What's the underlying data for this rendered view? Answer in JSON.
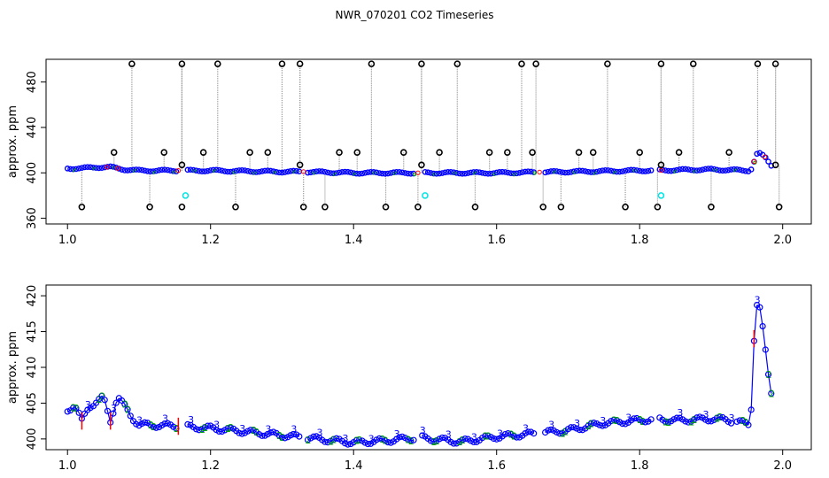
{
  "title": "NWR_070201  CO2 Timeseries",
  "chart_data": [
    {
      "type": "scatter",
      "ylabel": "approx. ppm",
      "xlim": [
        0.97,
        2.04
      ],
      "ylim": [
        355,
        500
      ],
      "x_ticks": [
        1.0,
        1.2,
        1.4,
        1.6,
        1.8,
        2.0
      ],
      "x_tick_labels": [
        "1.0",
        "1.2",
        "1.4",
        "1.6",
        "1.8",
        "2.0"
      ],
      "y_ticks": [
        360,
        400,
        440,
        480
      ],
      "y_tick_labels": [
        "360",
        "400",
        "440",
        "480"
      ],
      "base_series": [
        {
          "x": 1.0,
          "y": 404
        },
        {
          "x": 1.02,
          "y": 404
        },
        {
          "x": 1.04,
          "y": 405
        },
        {
          "x": 1.06,
          "y": 405
        },
        {
          "x": 1.08,
          "y": 403
        },
        {
          "x": 1.1,
          "y": 402
        },
        {
          "x": 1.2,
          "y": 402
        },
        {
          "x": 1.3,
          "y": 401
        },
        {
          "x": 1.33,
          "y": 401
        },
        {
          "x": 1.4,
          "y": 400
        },
        {
          "x": 1.5,
          "y": 400
        },
        {
          "x": 1.6,
          "y": 400
        },
        {
          "x": 1.7,
          "y": 401
        },
        {
          "x": 1.8,
          "y": 402
        },
        {
          "x": 1.9,
          "y": 403
        },
        {
          "x": 1.955,
          "y": 402
        },
        {
          "x": 1.965,
          "y": 418
        },
        {
          "x": 1.975,
          "y": 414
        },
        {
          "x": 1.985,
          "y": 406
        }
      ],
      "outliers_high": [
        1.09,
        1.16,
        1.21,
        1.3,
        1.325,
        1.425,
        1.495,
        1.545,
        1.635,
        1.655,
        1.755,
        1.83,
        1.875,
        1.965,
        1.99
      ],
      "outliers_low": [
        1.02,
        1.115,
        1.16,
        1.235,
        1.33,
        1.36,
        1.445,
        1.49,
        1.57,
        1.665,
        1.69,
        1.78,
        1.825,
        1.9,
        1.995
      ],
      "outliers_mid": [
        1.065,
        1.135,
        1.16,
        1.19,
        1.255,
        1.28,
        1.325,
        1.38,
        1.405,
        1.47,
        1.495,
        1.52,
        1.59,
        1.615,
        1.65,
        1.715,
        1.735,
        1.8,
        1.83,
        1.855,
        1.925,
        1.99
      ],
      "cyan_points": [
        {
          "x": 1.165,
          "y": 380
        },
        {
          "x": 1.5,
          "y": 380
        },
        {
          "x": 1.83,
          "y": 380
        }
      ],
      "colors": {
        "main": "#0000ff",
        "outlier": "#000000",
        "alt": "#00aa00",
        "flag": "#ff0000",
        "cyan": "#00e5e5",
        "line": "#999999"
      }
    },
    {
      "type": "scatter",
      "ylabel": "approx. ppm",
      "xlim": [
        0.97,
        2.04
      ],
      "ylim": [
        398.5,
        421.5
      ],
      "x_ticks": [
        1.0,
        1.2,
        1.4,
        1.6,
        1.8,
        2.0
      ],
      "x_tick_labels": [
        "1.0",
        "1.2",
        "1.4",
        "1.6",
        "1.8",
        "2.0"
      ],
      "y_ticks": [
        400,
        405,
        410,
        415,
        420
      ],
      "y_tick_labels": [
        "400",
        "405",
        "410",
        "415",
        "420"
      ],
      "series": [
        {
          "x": 1.0,
          "y": 404
        },
        {
          "x": 1.01,
          "y": 404.8
        },
        {
          "x": 1.02,
          "y": 402.5
        },
        {
          "x": 1.03,
          "y": 404.5
        },
        {
          "x": 1.04,
          "y": 405.2
        },
        {
          "x": 1.05,
          "y": 405.8
        },
        {
          "x": 1.06,
          "y": 402.5
        },
        {
          "x": 1.07,
          "y": 406
        },
        {
          "x": 1.08,
          "y": 404.5
        },
        {
          "x": 1.09,
          "y": 403
        },
        {
          "x": 1.1,
          "y": 402
        },
        {
          "x": 1.15,
          "y": 401.8
        },
        {
          "x": 1.2,
          "y": 401.5
        },
        {
          "x": 1.25,
          "y": 401
        },
        {
          "x": 1.3,
          "y": 400.5
        },
        {
          "x": 1.33,
          "y": 400.2
        },
        {
          "x": 1.4,
          "y": 399.5
        },
        {
          "x": 1.45,
          "y": 399.8
        },
        {
          "x": 1.49,
          "y": 400.2
        },
        {
          "x": 1.55,
          "y": 399.6
        },
        {
          "x": 1.6,
          "y": 400.3
        },
        {
          "x": 1.65,
          "y": 400.7
        },
        {
          "x": 1.7,
          "y": 401.2
        },
        {
          "x": 1.75,
          "y": 402.2
        },
        {
          "x": 1.8,
          "y": 402.6
        },
        {
          "x": 1.82,
          "y": 402.8
        },
        {
          "x": 1.85,
          "y": 402.6
        },
        {
          "x": 1.9,
          "y": 402.8
        },
        {
          "x": 1.92,
          "y": 402.7
        },
        {
          "x": 1.955,
          "y": 402
        },
        {
          "x": 1.96,
          "y": 414
        },
        {
          "x": 1.965,
          "y": 420
        },
        {
          "x": 1.97,
          "y": 417
        },
        {
          "x": 1.975,
          "y": 413
        },
        {
          "x": 1.98,
          "y": 409
        },
        {
          "x": 1.985,
          "y": 406
        }
      ],
      "colors": {
        "main": "#0000ff",
        "alt": "#00aa00",
        "flag": "#ff0000"
      }
    }
  ]
}
